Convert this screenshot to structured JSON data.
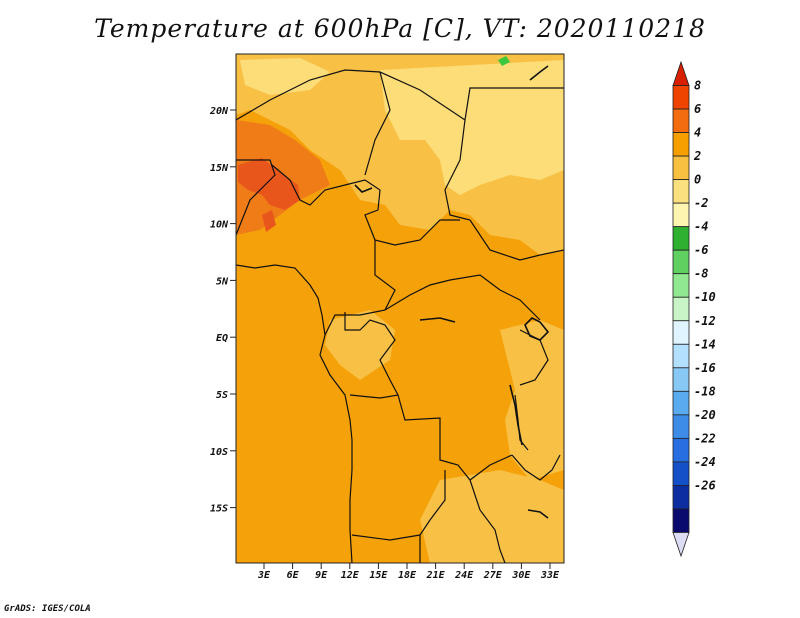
{
  "title": "Temperature at 600hPa [C], VT: 2020110218",
  "credit": "GrADS: IGES/COLA",
  "lat_labels": [
    "20N",
    "15N",
    "10N",
    "5N",
    "EQ",
    "5S",
    "10S",
    "15S"
  ],
  "lon_labels": [
    "3E",
    "6E",
    "9E",
    "12E",
    "15E",
    "18E",
    "21E",
    "24E",
    "27E",
    "30E",
    "33E"
  ],
  "colorbar": {
    "labels": [
      "8",
      "6",
      "4",
      "2",
      "0",
      "-2",
      "-4",
      "-6",
      "-8",
      "-10",
      "-12",
      "-14",
      "-16",
      "-18",
      "-20",
      "-22",
      "-24",
      "-26"
    ],
    "colors": [
      "#d82000",
      "#ee4400",
      "#f46c10",
      "#f5a000",
      "#f8c040",
      "#fbe080",
      "#fdf5b0",
      "#30b030",
      "#60d060",
      "#90e890",
      "#c8f4c8",
      "#e0f4ff",
      "#b4e0ff",
      "#88c8f4",
      "#5aaaf0",
      "#3c8ce8",
      "#286ee0",
      "#1450c8",
      "#0c2ea0",
      "#0a0a6e",
      "#dcdcf4"
    ]
  },
  "colors": {
    "base": "#f5a10a",
    "light": "#f8c146",
    "lighter": "#fcdd78",
    "warm": "#f07c18",
    "hot": "#e8561c",
    "cool": "#3cc83c"
  }
}
